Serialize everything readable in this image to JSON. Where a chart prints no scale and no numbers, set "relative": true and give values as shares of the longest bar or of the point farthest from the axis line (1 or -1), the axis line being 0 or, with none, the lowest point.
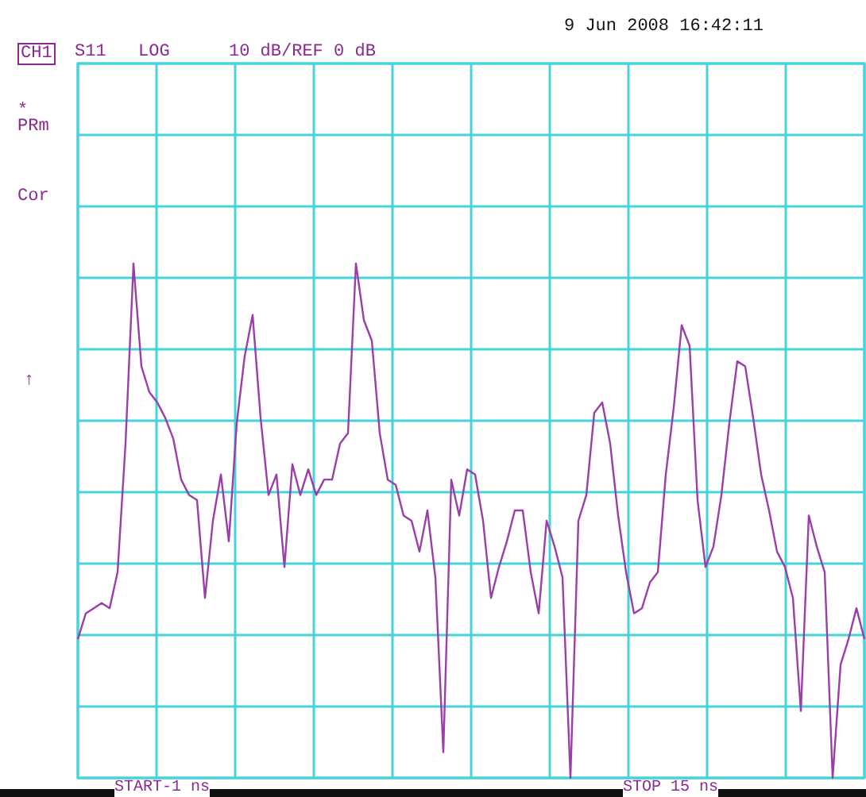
{
  "chart_data": {
    "type": "line",
    "relative": true,
    "grid": true,
    "marker": "none",
    "line_style": "solid",
    "categories": [
      null,
      null,
      null,
      null,
      null,
      null,
      null,
      null,
      null,
      null,
      null,
      null,
      null,
      null,
      null,
      null,
      null,
      null,
      null,
      null,
      null,
      null,
      null,
      null,
      null,
      null,
      null,
      null,
      null,
      null,
      null,
      null,
      null,
      null,
      null,
      null,
      null,
      null,
      null,
      null,
      null,
      null,
      null,
      null,
      null,
      null,
      null,
      null,
      null,
      null,
      null,
      null,
      null,
      null,
      null,
      null,
      null,
      null,
      null,
      null,
      null,
      null,
      null,
      null,
      null,
      null,
      null,
      null,
      null,
      null,
      null,
      null,
      null,
      null,
      null,
      null,
      null,
      null,
      null,
      null,
      null,
      null,
      null,
      null,
      null,
      null,
      null,
      null,
      null,
      null,
      null,
      null,
      null,
      null,
      null,
      null,
      null,
      null,
      null,
      null
    ],
    "annotations": [
      "CH1",
      "S11",
      "LOG",
      "10 dB/REF 0 dB",
      "9 Jun 2008  16:42:11",
      "*",
      "PRm",
      "Cor",
      "↑",
      "START-1 ns",
      "STOP 15 ns"
    ],
    "series": [
      {
        "color": "#9b3fa8",
        "values": [
          0.27,
          0.32,
          0.33,
          0.34,
          0.33,
          0.4,
          0.65,
          1.0,
          0.8,
          0.75,
          0.73,
          0.7,
          0.66,
          0.58,
          0.55,
          0.54,
          0.35,
          0.5,
          0.59,
          0.46,
          0.69,
          0.82,
          0.9,
          0.7,
          0.55,
          0.59,
          0.41,
          0.61,
          0.55,
          0.6,
          0.55,
          0.58,
          0.58,
          0.65,
          0.67,
          1.0,
          0.89,
          0.85,
          0.67,
          0.58,
          0.57,
          0.51,
          0.5,
          0.44,
          0.52,
          0.39,
          0.05,
          0.58,
          0.51,
          0.6,
          0.59,
          0.5,
          0.35,
          0.41,
          0.46,
          0.52,
          0.52,
          0.4,
          0.32,
          0.5,
          0.45,
          0.39,
          0,
          0.5,
          0.55,
          0.71,
          0.73,
          0.65,
          0.51,
          0.4,
          0.32,
          0.33,
          0.38,
          0.4,
          0.59,
          0.72,
          0.88,
          0.84,
          0.54,
          0.41,
          0.45,
          0.55,
          0.69,
          0.81,
          0.8,
          0.7,
          0.59,
          0.52,
          0.44,
          0.41,
          0.35,
          0.13,
          0.51,
          0.45,
          0.4,
          0,
          0.22,
          0.27,
          0.33,
          0.27
        ]
      }
    ]
  }
}
